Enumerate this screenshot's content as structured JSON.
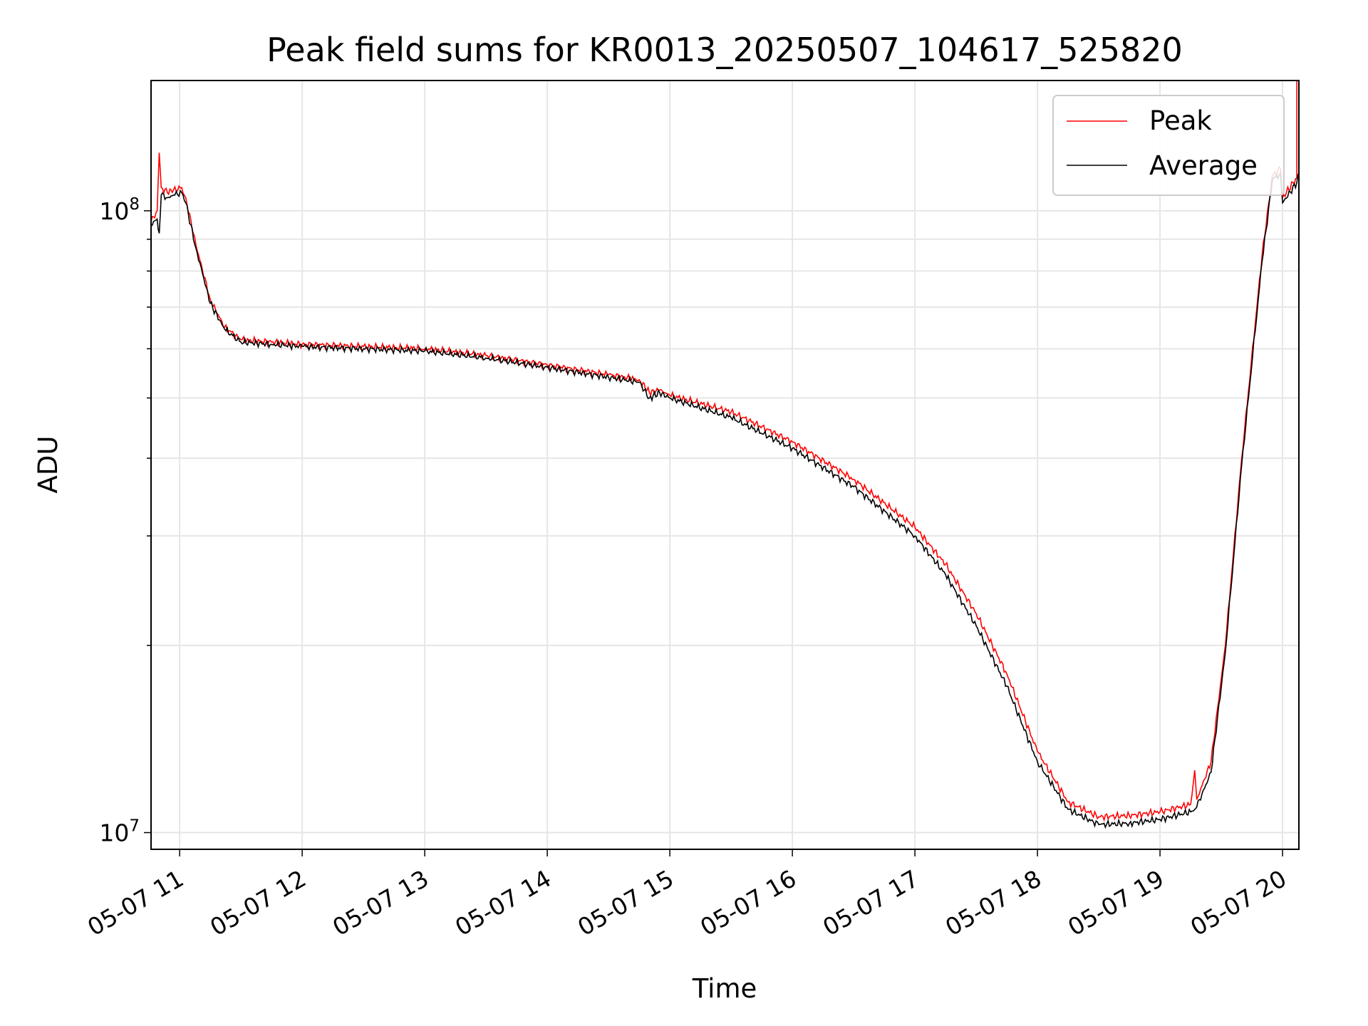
{
  "chart_data": {
    "type": "line",
    "title": "Peak field sums for KR0013_20250507_104617_525820",
    "xlabel": "Time",
    "ylabel": "ADU",
    "y_scale": "log",
    "ylim": [
      9400000,
      162000000
    ],
    "x_ticks": [
      "05-07 11",
      "05-07 12",
      "05-07 13",
      "05-07 14",
      "05-07 15",
      "05-07 16",
      "05-07 17",
      "05-07 18",
      "05-07 19",
      "05-07 20"
    ],
    "x_tick_dates": [
      "2025-05-07T11:00",
      "2025-05-07T12:00",
      "2025-05-07T13:00",
      "2025-05-07T14:00",
      "2025-05-07T15:00",
      "2025-05-07T16:00",
      "2025-05-07T17:00",
      "2025-05-07T18:00",
      "2025-05-07T19:00",
      "2025-05-07T20:00"
    ],
    "xlim": [
      "2025-05-07T10:46",
      "2025-05-07T20:08"
    ],
    "y_tick_labels": {
      "base": "10",
      "exponents": [
        "7",
        "8"
      ]
    },
    "grid": true,
    "legend_position": "top-right",
    "colors": {
      "peak": "#ff0000",
      "average": "#000000",
      "grid": "#e6e6e6"
    },
    "series": [
      {
        "name": "Peak",
        "color": "#ff0000",
        "points": [
          [
            "2025-05-07T10:46",
            96000000
          ],
          [
            "2025-05-07T10:49",
            100000000
          ],
          [
            "2025-05-07T10:50",
            124000000
          ],
          [
            "2025-05-07T10:51",
            109000000
          ],
          [
            "2025-05-07T10:54",
            107000000
          ],
          [
            "2025-05-07T10:57",
            108000000
          ],
          [
            "2025-05-07T11:01",
            109000000
          ],
          [
            "2025-05-07T11:03",
            105000000
          ],
          [
            "2025-05-07T11:08",
            88000000
          ],
          [
            "2025-05-07T11:15",
            72000000
          ],
          [
            "2025-05-07T11:22",
            65000000
          ],
          [
            "2025-05-07T11:30",
            62000000
          ],
          [
            "2025-05-07T11:45",
            61500000
          ],
          [
            "2025-05-07T12:00",
            61000000
          ],
          [
            "2025-05-07T12:30",
            60500000
          ],
          [
            "2025-05-07T13:00",
            60000000
          ],
          [
            "2025-05-07T13:30",
            58500000
          ],
          [
            "2025-05-07T14:00",
            56500000
          ],
          [
            "2025-05-07T14:30",
            54500000
          ],
          [
            "2025-05-07T14:45",
            53500000
          ],
          [
            "2025-05-07T14:50",
            51000000
          ],
          [
            "2025-05-07T14:55",
            51500000
          ],
          [
            "2025-05-07T15:00",
            50500000
          ],
          [
            "2025-05-07T15:30",
            47500000
          ],
          [
            "2025-05-07T16:00",
            42500000
          ],
          [
            "2025-05-07T16:30",
            37000000
          ],
          [
            "2025-05-07T17:00",
            31000000
          ],
          [
            "2025-05-07T17:15",
            27000000
          ],
          [
            "2025-05-07T17:30",
            22500000
          ],
          [
            "2025-05-07T17:45",
            18000000
          ],
          [
            "2025-05-07T18:00",
            13500000
          ],
          [
            "2025-05-07T18:15",
            11200000
          ],
          [
            "2025-05-07T18:30",
            10600000
          ],
          [
            "2025-05-07T18:45",
            10650000
          ],
          [
            "2025-05-07T19:00",
            10800000
          ],
          [
            "2025-05-07T19:15",
            11100000
          ],
          [
            "2025-05-07T19:17",
            12600000
          ],
          [
            "2025-05-07T19:18",
            11300000
          ],
          [
            "2025-05-07T19:25",
            13000000
          ],
          [
            "2025-05-07T19:32",
            20000000
          ],
          [
            "2025-05-07T19:40",
            40000000
          ],
          [
            "2025-05-07T19:50",
            85000000
          ],
          [
            "2025-05-07T19:55",
            114000000
          ],
          [
            "2025-05-07T19:59",
            117000000
          ],
          [
            "2025-05-07T20:00",
            105000000
          ],
          [
            "2025-05-07T20:07",
            113000000
          ],
          [
            "2025-05-07T20:07",
            162000000
          ]
        ]
      },
      {
        "name": "Average",
        "color": "#000000",
        "points": [
          [
            "2025-05-07T10:46",
            95000000
          ],
          [
            "2025-05-07T10:49",
            97000000
          ],
          [
            "2025-05-07T10:50",
            92000000
          ],
          [
            "2025-05-07T10:51",
            106000000
          ],
          [
            "2025-05-07T10:54",
            105000000
          ],
          [
            "2025-05-07T10:57",
            106000000
          ],
          [
            "2025-05-07T11:01",
            107000000
          ],
          [
            "2025-05-07T11:03",
            103000000
          ],
          [
            "2025-05-07T11:08",
            87000000
          ],
          [
            "2025-05-07T11:15",
            71000000
          ],
          [
            "2025-05-07T11:22",
            64500000
          ],
          [
            "2025-05-07T11:30",
            61500000
          ],
          [
            "2025-05-07T11:45",
            61000000
          ],
          [
            "2025-05-07T12:00",
            60500000
          ],
          [
            "2025-05-07T12:30",
            60000000
          ],
          [
            "2025-05-07T13:00",
            59500000
          ],
          [
            "2025-05-07T13:30",
            58000000
          ],
          [
            "2025-05-07T14:00",
            56000000
          ],
          [
            "2025-05-07T14:30",
            54000000
          ],
          [
            "2025-05-07T14:45",
            53000000
          ],
          [
            "2025-05-07T14:50",
            50000000
          ],
          [
            "2025-05-07T14:55",
            51000000
          ],
          [
            "2025-05-07T15:00",
            50000000
          ],
          [
            "2025-05-07T15:30",
            46500000
          ],
          [
            "2025-05-07T16:00",
            41500000
          ],
          [
            "2025-05-07T16:30",
            36000000
          ],
          [
            "2025-05-07T17:00",
            30000000
          ],
          [
            "2025-05-07T17:15",
            26000000
          ],
          [
            "2025-05-07T17:30",
            21500000
          ],
          [
            "2025-05-07T17:45",
            17200000
          ],
          [
            "2025-05-07T18:00",
            13000000
          ],
          [
            "2025-05-07T18:15",
            10900000
          ],
          [
            "2025-05-07T18:30",
            10300000
          ],
          [
            "2025-05-07T18:45",
            10350000
          ],
          [
            "2025-05-07T19:00",
            10500000
          ],
          [
            "2025-05-07T19:15",
            10800000
          ],
          [
            "2025-05-07T19:17",
            10900000
          ],
          [
            "2025-05-07T19:18",
            11000000
          ],
          [
            "2025-05-07T19:25",
            12500000
          ],
          [
            "2025-05-07T19:32",
            19500000
          ],
          [
            "2025-05-07T19:40",
            39000000
          ],
          [
            "2025-05-07T19:50",
            83000000
          ],
          [
            "2025-05-07T19:55",
            112000000
          ],
          [
            "2025-05-07T19:59",
            115000000
          ],
          [
            "2025-05-07T20:00",
            103000000
          ],
          [
            "2025-05-07T20:07",
            111000000
          ],
          [
            "2025-05-07T20:08",
            115000000
          ]
        ]
      }
    ]
  }
}
